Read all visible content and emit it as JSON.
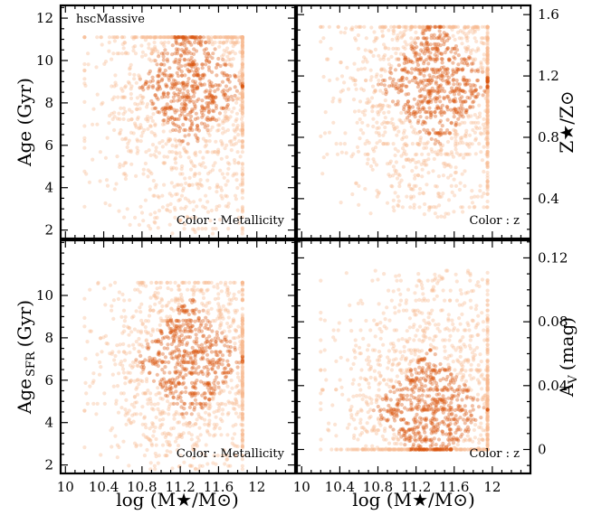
{
  "chart_data": [
    {
      "type": "scatter",
      "panel": "top-left",
      "sample_label": "hscMassive",
      "color_note": "Color : Metallicity",
      "xlabel": "",
      "ylabel": "Age (Gyr)",
      "xlim": [
        9.95,
        12.4
      ],
      "ylim": [
        1.6,
        12.6
      ],
      "xticks": [],
      "yticks": [
        2,
        4,
        6,
        8,
        10,
        12
      ],
      "ytick_side": "left",
      "series": [
        {
          "x_range": [
            10.2,
            11.85
          ],
          "y_range": [
            1.8,
            11.1
          ],
          "n": 1400,
          "x_center": 11.3,
          "y_center": 8.8,
          "note": "dense band 7-11 Gyr"
        }
      ]
    },
    {
      "type": "scatter",
      "panel": "top-right",
      "color_note": "Color : z",
      "xlabel": "",
      "ylabel": "Z★/Z⊙",
      "xlim": [
        9.95,
        12.4
      ],
      "ylim": [
        0.14,
        1.66
      ],
      "xticks": [],
      "yticks": [
        0.4,
        0.8,
        1.2,
        1.6
      ],
      "ytick_side": "right",
      "series": [
        {
          "x_range": [
            10.2,
            11.95
          ],
          "y_range": [
            0.28,
            1.52
          ],
          "n": 1500,
          "x_center": 11.4,
          "y_center": 1.15,
          "note": "dense at high metallicity, striped"
        }
      ]
    },
    {
      "type": "scatter",
      "panel": "bottom-left",
      "color_note": "Color : Metallicity",
      "xlabel": "log (M★/M⊙)",
      "ylabel": "Age SFR (Gyr)",
      "xlim": [
        9.95,
        12.4
      ],
      "ylim": [
        1.6,
        12.6
      ],
      "xticks": [
        10,
        10.4,
        10.8,
        11.2,
        11.6,
        12
      ],
      "yticks": [
        2,
        4,
        6,
        8,
        10
      ],
      "ytick_side": "left",
      "series": [
        {
          "x_range": [
            10.2,
            11.85
          ],
          "y_range": [
            1.8,
            10.6
          ],
          "n": 1400,
          "x_center": 11.3,
          "y_center": 7.0,
          "note": "broad distribution 3-10 Gyr"
        }
      ]
    },
    {
      "type": "scatter",
      "panel": "bottom-right",
      "color_note": "Color : z",
      "xlabel": "log (M★/M⊙)",
      "ylabel": "A_V (mag)",
      "xlim": [
        9.95,
        12.4
      ],
      "ylim": [
        -0.015,
        0.131
      ],
      "xticks": [
        10,
        10.4,
        10.8,
        11.2,
        11.6,
        12
      ],
      "yticks": [
        0,
        0.04,
        0.08,
        0.12
      ],
      "ytick_side": "right",
      "series": [
        {
          "x_range": [
            10.2,
            11.95
          ],
          "y_range": [
            0.0,
            0.112
          ],
          "n": 1500,
          "x_center": 11.35,
          "y_center": 0.025,
          "note": "dense near zero, horizontal stripes"
        }
      ]
    }
  ],
  "colors": {
    "point_dark": "#d9570f",
    "point_light": "#f6b88e",
    "axis": "#000000"
  },
  "labels": {
    "tl_ylabel": "Age (Gyr)",
    "bl_ylabel_main": "Age",
    "bl_ylabel_sub": "SFR",
    "bl_ylabel_unit": "(Gyr)",
    "tr_ylabel": "Z★/Z⊙",
    "br_ylabel": "A",
    "br_ylabel_sub": "V",
    "br_ylabel_unit": "(mag)",
    "xlabel_left": "log (M★/M⊙)",
    "xlabel_right": "log (M★/M⊙)",
    "sample": "hscMassive",
    "tl_color": "Color : Metallicity",
    "tr_color": "Color : z",
    "bl_color": "Color : Metallicity",
    "br_color": "Color : z"
  }
}
